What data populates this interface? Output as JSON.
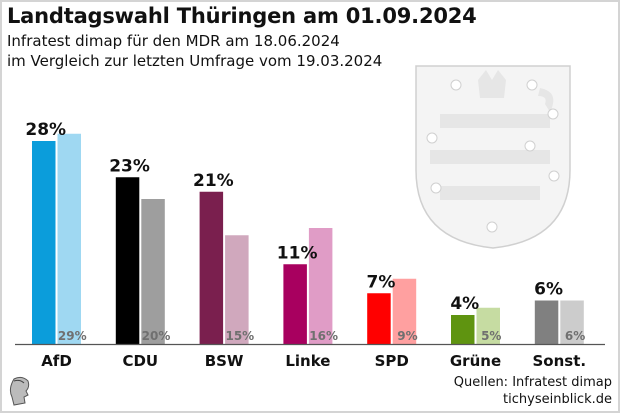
{
  "title": "Landtagswahl Thüringen am 01.09.2024",
  "subtitle_line1": "Infratest dimap für den MDR am 18.06.2024",
  "subtitle_line2": "im Vergleich zur letzten Umfrage vom 19.03.2024",
  "source_line1": "Quellen: Infratest dimap",
  "source_line2": "tichyseinblick.de",
  "background_emblem": "thuringia-coat-of-arms",
  "logo": "classical-head-logo",
  "chart_data": {
    "type": "bar",
    "title": "Landtagswahl Thüringen am 01.09.2024",
    "xlabel": "",
    "ylabel": "",
    "ylim": [
      0,
      30
    ],
    "grid": false,
    "legend": "none",
    "categories": [
      "AfD",
      "CDU",
      "BSW",
      "Linke",
      "SPD",
      "Grüne",
      "Sonst."
    ],
    "series": [
      {
        "name": "18.06.2024",
        "values": [
          28,
          23,
          21,
          11,
          7,
          4,
          6
        ],
        "colors": [
          "#0b9ddb",
          "#000000",
          "#7a1f4e",
          "#a8005f",
          "#ff0000",
          "#5f9410",
          "#808080"
        ]
      },
      {
        "name": "19.03.2024",
        "values": [
          29,
          20,
          15,
          16,
          9,
          5,
          6
        ],
        "colors": [
          "#9fd8f2",
          "#9e9e9e",
          "#d0a8bd",
          "#e09cc6",
          "#ffa0a0",
          "#c6dca2",
          "#cccccc"
        ]
      }
    ],
    "value_labels_current": [
      "28%",
      "23%",
      "21%",
      "11%",
      "7%",
      "4%",
      "6%"
    ],
    "value_labels_previous": [
      "29%",
      "20%",
      "15%",
      "16%",
      "9%",
      "5%",
      "6%"
    ]
  }
}
